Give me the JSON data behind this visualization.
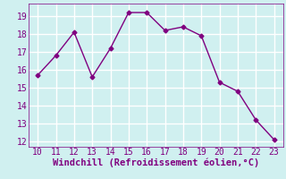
{
  "x": [
    10,
    11,
    12,
    13,
    14,
    15,
    16,
    17,
    18,
    19,
    20,
    21,
    22,
    23
  ],
  "y": [
    15.7,
    16.8,
    18.1,
    15.6,
    17.2,
    19.2,
    19.2,
    18.2,
    18.4,
    17.9,
    15.3,
    14.8,
    13.2,
    12.1
  ],
  "xlabel": "Windchill (Refroidissement éolien,°C)",
  "xlim_min": 9.5,
  "xlim_max": 23.5,
  "ylim_min": 11.7,
  "ylim_max": 19.7,
  "xticks": [
    10,
    11,
    12,
    13,
    14,
    15,
    16,
    17,
    18,
    19,
    20,
    21,
    22,
    23
  ],
  "yticks": [
    12,
    13,
    14,
    15,
    16,
    17,
    18,
    19
  ],
  "line_color": "#800080",
  "marker": "D",
  "marker_size": 2.5,
  "bg_color": "#d0f0f0",
  "grid_color": "#ffffff",
  "tick_label_color": "#800080",
  "xlabel_color": "#800080",
  "xlabel_fontsize": 7.5,
  "tick_fontsize": 7,
  "line_width": 1.0
}
